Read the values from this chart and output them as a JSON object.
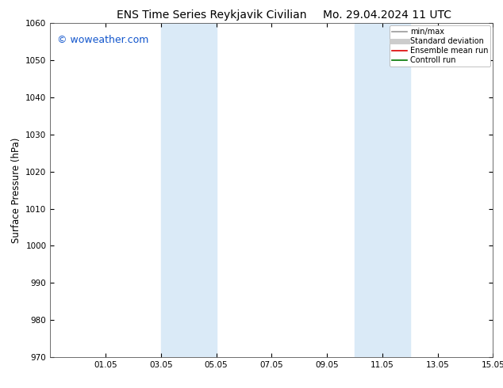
{
  "title_left": "ENS Time Series Reykjavik Civilian",
  "title_right": "Mo. 29.04.2024 11 UTC",
  "ylabel": "Surface Pressure (hPa)",
  "ylim": [
    970,
    1060
  ],
  "yticks": [
    970,
    980,
    990,
    1000,
    1010,
    1020,
    1030,
    1040,
    1050,
    1060
  ],
  "xtick_labels": [
    "01.05",
    "03.05",
    "05.05",
    "07.05",
    "09.05",
    "11.05",
    "13.05",
    "15.05"
  ],
  "xtick_positions": [
    2,
    4,
    6,
    8,
    10,
    12,
    14,
    16
  ],
  "xlim": [
    0,
    16
  ],
  "shade_bands": [
    {
      "x_start": 4.0,
      "x_end": 6.0
    },
    {
      "x_start": 11.0,
      "x_end": 13.0
    }
  ],
  "shade_color": "#daeaf7",
  "bg_color": "#ffffff",
  "watermark": "© woweather.com",
  "watermark_color": "#1155cc",
  "legend_entries": [
    {
      "label": "min/max",
      "color": "#999999",
      "lw": 1.2
    },
    {
      "label": "Standard deviation",
      "color": "#cccccc",
      "lw": 5
    },
    {
      "label": "Ensemble mean run",
      "color": "#dd0000",
      "lw": 1.2
    },
    {
      "label": "Controll run",
      "color": "#007700",
      "lw": 1.2
    }
  ],
  "title_fontsize": 10,
  "tick_fontsize": 7.5,
  "ylabel_fontsize": 8.5,
  "watermark_fontsize": 9,
  "legend_fontsize": 7
}
